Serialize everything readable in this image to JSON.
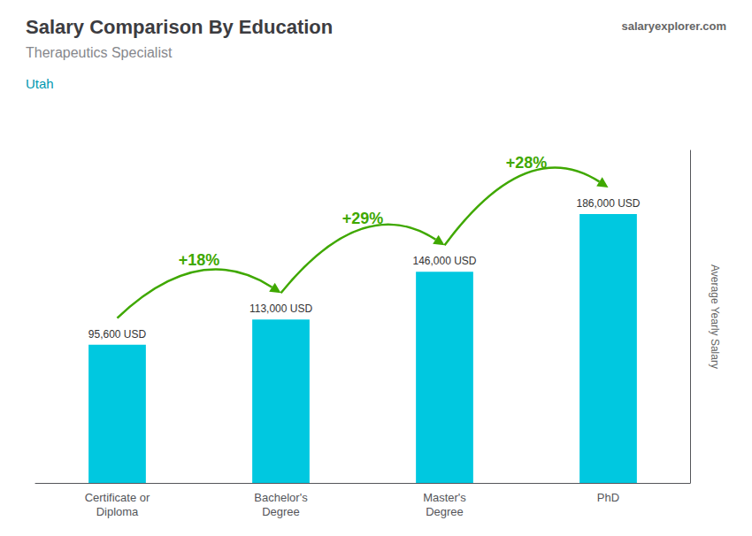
{
  "chart_data": {
    "type": "bar",
    "title": "Salary Comparison By Education",
    "subtitle": "Therapeutics Specialist",
    "ylabel": "Average Yearly Salary",
    "categories": [
      "Certificate or\nDiploma",
      "Bachelor's\nDegree",
      "Master's\nDegree",
      "PhD"
    ],
    "values": [
      95600,
      113000,
      146000,
      186000
    ],
    "value_labels": [
      "95,600 USD",
      "113,000 USD",
      "146,000 USD",
      "186,000 USD"
    ],
    "data_labels": true,
    "color": "#00c8e0",
    "ylim": [
      0,
      230000
    ],
    "grid": false,
    "tick_labels": "x",
    "annotations": [
      {
        "text": "Utah"
      },
      {
        "text": "salaryexplorer.com"
      },
      {
        "text": "+18%",
        "from": "Certificate or\nDiploma",
        "to": "Bachelor's\nDegree"
      },
      {
        "text": "+29%",
        "from": "Bachelor's\nDegree",
        "to": "Master's\nDegree"
      },
      {
        "text": "+28%",
        "from": "Master's\nDegree",
        "to": "PhD"
      }
    ]
  }
}
